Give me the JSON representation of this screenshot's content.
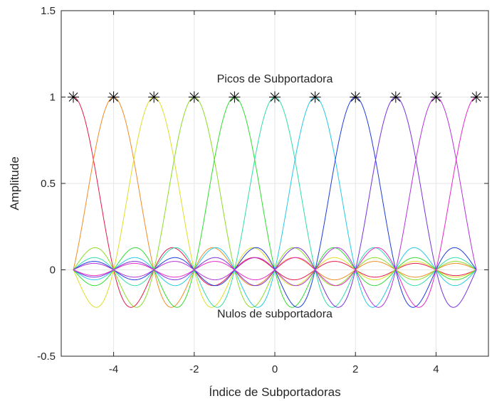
{
  "chart_data": {
    "type": "line",
    "xlabel": "Índice de Subportadoras",
    "ylabel": "Amplitude",
    "xlim": [
      -5.3,
      5.3
    ],
    "ylim": [
      -0.5,
      1.5
    ],
    "xticks": [
      -4,
      -2,
      0,
      2,
      4
    ],
    "xtick_labels": [
      "-4",
      "-2",
      "0",
      "2",
      "4"
    ],
    "yticks": [
      -0.5,
      0,
      0.5,
      1,
      1.5
    ],
    "ytick_labels": [
      "-0.5",
      "0",
      "0.5",
      "1",
      "1.5"
    ],
    "grid": true,
    "x_range": [
      -5,
      5
    ],
    "subcarrier_centers": [
      -5,
      -4,
      -3,
      -2,
      -1,
      0,
      1,
      2,
      3,
      4,
      5
    ],
    "series_colors": [
      "#e6194b",
      "#f08c28",
      "#dede28",
      "#8cdc28",
      "#32dc32",
      "#32dcaa",
      "#28c8e6",
      "#1e3cdc",
      "#7832dc",
      "#b432dc",
      "#e628c8"
    ],
    "peaks": {
      "x": [
        -5,
        -4,
        -3,
        -2,
        -1,
        0,
        1,
        2,
        3,
        4,
        5
      ],
      "y": [
        1,
        1,
        1,
        1,
        1,
        1,
        1,
        1,
        1,
        1,
        1
      ]
    },
    "annotations": [
      {
        "text": "Picos de Subportadora",
        "x": 0,
        "y": 1.11
      },
      {
        "text": "Nulos de subportadora",
        "x": 0,
        "y": -0.25
      }
    ]
  }
}
